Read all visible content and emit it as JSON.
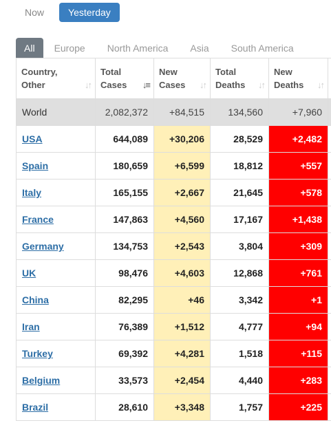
{
  "time_tabs": [
    "Now",
    "Yesterday"
  ],
  "region_tabs": [
    "All",
    "Europe",
    "North America",
    "Asia",
    "South America"
  ],
  "table": {
    "headers": [
      {
        "line1": "Country,",
        "line2": "Other"
      },
      {
        "line1": "Total",
        "line2": "Cases"
      },
      {
        "line1": "New",
        "line2": "Cases"
      },
      {
        "line1": "Total",
        "line2": "Deaths"
      },
      {
        "line1": "New",
        "line2": "Deaths"
      }
    ],
    "world": {
      "country": "World",
      "total_cases": "2,082,372",
      "new_cases": "+84,515",
      "total_deaths": "134,560",
      "new_deaths": "+7,960"
    },
    "rows": [
      {
        "country": "USA",
        "total_cases": "644,089",
        "new_cases": "+30,206",
        "total_deaths": "28,529",
        "new_deaths": "+2,482"
      },
      {
        "country": "Spain",
        "total_cases": "180,659",
        "new_cases": "+6,599",
        "total_deaths": "18,812",
        "new_deaths": "+557"
      },
      {
        "country": "Italy",
        "total_cases": "165,155",
        "new_cases": "+2,667",
        "total_deaths": "21,645",
        "new_deaths": "+578"
      },
      {
        "country": "France",
        "total_cases": "147,863",
        "new_cases": "+4,560",
        "total_deaths": "17,167",
        "new_deaths": "+1,438"
      },
      {
        "country": "Germany",
        "total_cases": "134,753",
        "new_cases": "+2,543",
        "total_deaths": "3,804",
        "new_deaths": "+309"
      },
      {
        "country": "UK",
        "total_cases": "98,476",
        "new_cases": "+4,603",
        "total_deaths": "12,868",
        "new_deaths": "+761"
      },
      {
        "country": "China",
        "total_cases": "82,295",
        "new_cases": "+46",
        "total_deaths": "3,342",
        "new_deaths": "+1"
      },
      {
        "country": "Iran",
        "total_cases": "76,389",
        "new_cases": "+1,512",
        "total_deaths": "4,777",
        "new_deaths": "+94"
      },
      {
        "country": "Turkey",
        "total_cases": "69,392",
        "new_cases": "+4,281",
        "total_deaths": "1,518",
        "new_deaths": "+115"
      },
      {
        "country": "Belgium",
        "total_cases": "33,573",
        "new_cases": "+2,454",
        "total_deaths": "4,440",
        "new_deaths": "+283"
      },
      {
        "country": "Brazil",
        "total_cases": "28,610",
        "new_cases": "+3,348",
        "total_deaths": "1,757",
        "new_deaths": "+225"
      }
    ]
  },
  "colors": {
    "accent": "#3a7fc1",
    "new_cases_bg": "#fff0b8",
    "new_deaths_bg": "#ff0000",
    "link": "#2d6ea6"
  }
}
